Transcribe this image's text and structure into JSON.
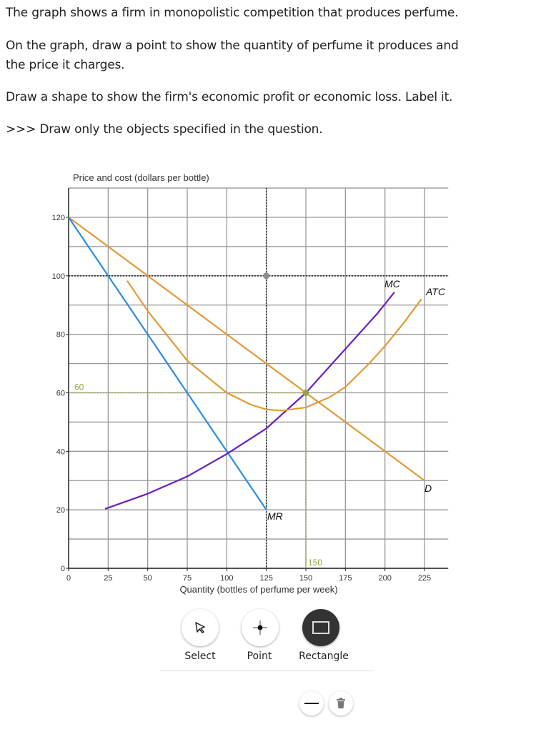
{
  "question": {
    "line1": "The graph shows a firm in monopolistic competition that produces perfume.",
    "line2a": "On the graph, draw a point to show the quantity of perfume it produces and",
    "line2b": "the price it charges.",
    "line3": "Draw a shape to show the firm's economic profit or economic loss. Label it.",
    "line4": ">>> Draw only the objects specified in the question."
  },
  "chart_data": {
    "type": "line",
    "ylabel": "Price and cost (dollars per bottle)",
    "xlabel": "Quantity (bottles of perfume per week)",
    "xlim": [
      0,
      240
    ],
    "ylim": [
      0,
      130
    ],
    "xticks": [
      0,
      25,
      50,
      75,
      100,
      125,
      150,
      175,
      200,
      225
    ],
    "yticks": [
      0,
      20,
      40,
      60,
      80,
      100,
      120
    ],
    "grid": true,
    "series": [
      {
        "name": "D",
        "color": "#e29a37",
        "points": [
          [
            0,
            120
          ],
          [
            225,
            30
          ]
        ]
      },
      {
        "name": "MR",
        "color": "#2a8de0",
        "points": [
          [
            0,
            120
          ],
          [
            125,
            20
          ]
        ]
      },
      {
        "name": "MC",
        "color": "#6a1fc2",
        "points": [
          [
            23,
            20.3
          ],
          [
            50,
            25.5
          ],
          [
            75,
            31.4
          ],
          [
            100,
            39.1
          ],
          [
            125,
            47.8
          ],
          [
            150,
            60
          ],
          [
            175,
            75
          ],
          [
            195,
            87
          ],
          [
            206,
            94.4
          ]
        ]
      },
      {
        "name": "ATC",
        "color": "#e29a37",
        "points": [
          [
            37,
            98.3
          ],
          [
            50,
            88
          ],
          [
            75,
            71
          ],
          [
            100,
            60
          ],
          [
            115,
            56
          ],
          [
            125,
            54.3
          ],
          [
            135,
            53.9
          ],
          [
            150,
            55
          ],
          [
            165,
            58.5
          ],
          [
            175,
            62
          ],
          [
            190,
            70
          ],
          [
            200,
            76
          ],
          [
            212,
            84
          ],
          [
            223,
            92
          ]
        ]
      }
    ],
    "markers": [
      {
        "x": 125,
        "y": 100,
        "color": "#8c8c8c",
        "guide_color": "#222"
      },
      {
        "x": 150,
        "y": 60,
        "color": "#9aa040",
        "guide_color": "#9aa040",
        "x_label": "150",
        "y_label": "60"
      }
    ]
  },
  "toolbar": {
    "tools": [
      {
        "label": "Select",
        "icon": "cursor-arrow-icon"
      },
      {
        "label": "Point",
        "icon": "point-crosshair-icon"
      },
      {
        "label": "Rectangle",
        "icon": "rectangle-icon",
        "active": true
      }
    ],
    "extra": [
      {
        "icon": "line-icon"
      },
      {
        "icon": "trash-icon"
      }
    ]
  }
}
